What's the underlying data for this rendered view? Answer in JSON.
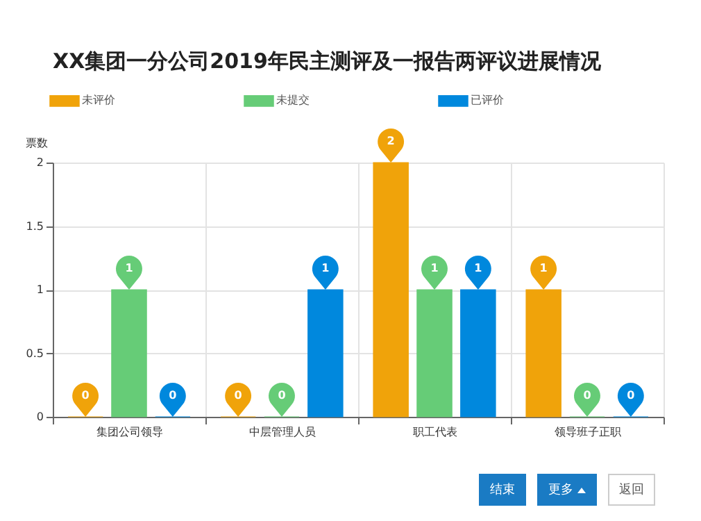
{
  "chart_data": {
    "type": "bar",
    "title": "XX集团一分公司2019年民主测评及一报告两评议进展情况",
    "ylabel": "票数",
    "categories": [
      "集团公司领导",
      "中层管理人员",
      "职工代表",
      "领导班子正职"
    ],
    "series": [
      {
        "name": "未评价",
        "color": "#f0a30a",
        "values": [
          0,
          0,
          2,
          1
        ]
      },
      {
        "name": "未提交",
        "color": "#66cc77",
        "values": [
          1,
          0,
          1,
          0
        ]
      },
      {
        "name": "已评价",
        "color": "#0088dd",
        "values": [
          0,
          1,
          1,
          0
        ]
      }
    ],
    "ylim": [
      0,
      2
    ],
    "yticks": [
      0,
      0.5,
      1,
      1.5,
      2
    ],
    "grid": true,
    "legend": "top",
    "data_labels": true,
    "annotations": [
      "结束",
      "更多",
      "返回"
    ]
  }
}
